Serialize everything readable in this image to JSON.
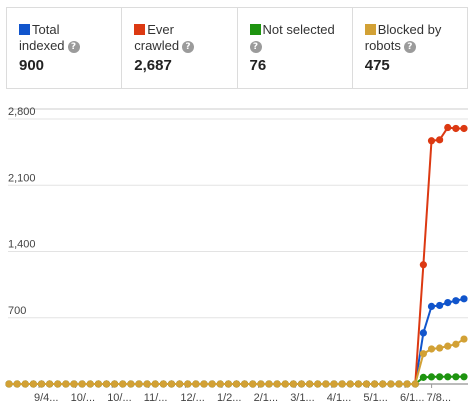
{
  "summary_cards": [
    {
      "line1": "Total",
      "line2": "indexed",
      "value": "900",
      "color": "#1155cc"
    },
    {
      "line1": "Ever",
      "line2": "crawled",
      "value": "2,687",
      "color": "#dc3912"
    },
    {
      "line1": "Not selected",
      "line2": "",
      "value": "76",
      "color": "#1e9410"
    },
    {
      "line1": "Blocked by",
      "line2": "robots",
      "value": "475",
      "color": "#d2a135"
    }
  ],
  "help_icon_glyph": "?",
  "chart_data": {
    "type": "line",
    "title": "",
    "xlabel": "",
    "ylabel": "",
    "ylim": [
      0,
      2800
    ],
    "yticks": [
      700,
      1400,
      2100,
      2800
    ],
    "ytick_labels": [
      "700",
      "1,400",
      "2,100",
      "2,800"
    ],
    "xtick_labels": [
      "9/4...",
      "10/...",
      "10/...",
      "11/...",
      "12/...",
      "1/2...",
      "2/1...",
      "3/1...",
      "4/1...",
      "5/1...",
      "6/1...",
      "7/8..."
    ],
    "grid": true,
    "x": [
      0,
      1,
      2,
      3,
      4,
      5,
      6,
      7,
      8,
      9,
      10,
      11,
      12,
      13,
      14,
      15,
      16,
      17,
      18,
      19,
      20,
      21,
      22,
      23,
      24,
      25,
      26,
      27,
      28,
      29,
      30,
      31,
      32,
      33,
      34,
      35,
      36,
      37,
      38,
      39,
      40,
      41,
      42,
      43,
      44,
      45,
      46,
      47,
      48,
      49,
      50,
      51,
      52,
      53,
      54,
      55,
      56
    ],
    "series": [
      {
        "name": "Total indexed",
        "color": "#1155cc",
        "values": [
          0,
          0,
          0,
          0,
          0,
          0,
          0,
          0,
          0,
          0,
          0,
          0,
          0,
          0,
          0,
          0,
          0,
          0,
          0,
          0,
          0,
          0,
          0,
          0,
          0,
          0,
          0,
          0,
          0,
          0,
          0,
          0,
          0,
          0,
          0,
          0,
          0,
          0,
          0,
          0,
          0,
          0,
          0,
          0,
          0,
          0,
          0,
          0,
          0,
          0,
          0,
          540,
          820,
          830,
          860,
          880,
          900
        ]
      },
      {
        "name": "Ever crawled",
        "color": "#dc3912",
        "values": [
          0,
          0,
          0,
          0,
          0,
          0,
          0,
          0,
          0,
          0,
          0,
          0,
          0,
          0,
          0,
          0,
          0,
          0,
          0,
          0,
          0,
          0,
          0,
          0,
          0,
          0,
          0,
          0,
          0,
          0,
          0,
          0,
          0,
          0,
          0,
          0,
          0,
          0,
          0,
          0,
          0,
          0,
          0,
          0,
          0,
          0,
          0,
          0,
          0,
          0,
          0,
          1260,
          2570,
          2580,
          2710,
          2700,
          2700
        ]
      },
      {
        "name": "Not selected",
        "color": "#1e9410",
        "values": [
          0,
          0,
          0,
          0,
          0,
          0,
          0,
          0,
          0,
          0,
          0,
          0,
          0,
          0,
          0,
          0,
          0,
          0,
          0,
          0,
          0,
          0,
          0,
          0,
          0,
          0,
          0,
          0,
          0,
          0,
          0,
          0,
          0,
          0,
          0,
          0,
          0,
          0,
          0,
          0,
          0,
          0,
          0,
          0,
          0,
          0,
          0,
          0,
          0,
          0,
          0,
          70,
          75,
          76,
          76,
          76,
          76
        ]
      },
      {
        "name": "Blocked by robots",
        "color": "#d2a135",
        "values": [
          0,
          0,
          0,
          0,
          0,
          0,
          0,
          0,
          0,
          0,
          0,
          0,
          0,
          0,
          0,
          0,
          0,
          0,
          0,
          0,
          0,
          0,
          0,
          0,
          0,
          0,
          0,
          0,
          0,
          0,
          0,
          0,
          0,
          0,
          0,
          0,
          0,
          0,
          0,
          0,
          0,
          0,
          0,
          0,
          0,
          0,
          0,
          0,
          0,
          0,
          0,
          320,
          370,
          380,
          400,
          420,
          475
        ]
      }
    ]
  }
}
